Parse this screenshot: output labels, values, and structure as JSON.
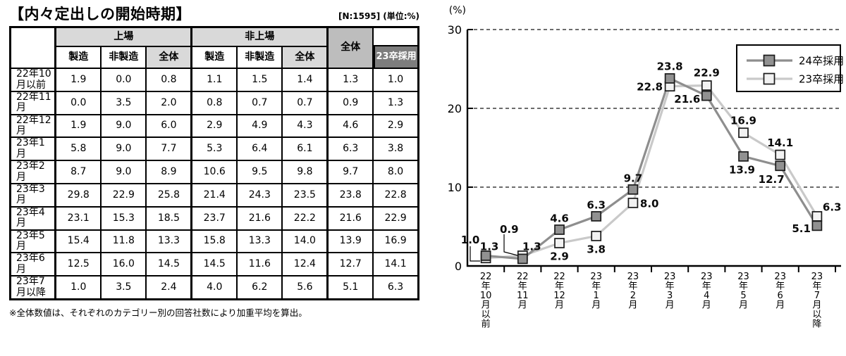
{
  "header": {
    "title": "【内々定出しの開始時期】",
    "note_n": "[N:1595]",
    "note_unit": "(単位:%)"
  },
  "table": {
    "column_groups": [
      {
        "label": "上場",
        "sub_columns": [
          "製造",
          "非製造",
          "全体"
        ]
      },
      {
        "label": "非上場",
        "sub_columns": [
          "製造",
          "非製造",
          "全体"
        ]
      }
    ],
    "overall_label": "全体",
    "grad23_label": "23卒採用",
    "rows": [
      {
        "label": "22年10月以前",
        "values": [
          1.9,
          0.0,
          0.8,
          1.1,
          1.5,
          1.4,
          1.3,
          1.0
        ]
      },
      {
        "label": "22年11月",
        "values": [
          0.0,
          3.5,
          2.0,
          0.8,
          0.7,
          0.7,
          0.9,
          1.3
        ]
      },
      {
        "label": "22年12月",
        "values": [
          1.9,
          9.0,
          6.0,
          2.9,
          4.9,
          4.3,
          4.6,
          2.9
        ]
      },
      {
        "label": "23年1月",
        "values": [
          5.8,
          9.0,
          7.7,
          5.3,
          6.4,
          6.1,
          6.3,
          3.8
        ]
      },
      {
        "label": "23年2月",
        "values": [
          8.7,
          9.0,
          8.9,
          10.6,
          9.5,
          9.8,
          9.7,
          8.0
        ]
      },
      {
        "label": "23年3月",
        "values": [
          29.8,
          22.9,
          25.8,
          21.4,
          24.3,
          23.5,
          23.8,
          22.8
        ]
      },
      {
        "label": "23年4月",
        "values": [
          23.1,
          15.3,
          18.5,
          23.7,
          21.6,
          22.2,
          21.6,
          22.9
        ]
      },
      {
        "label": "23年5月",
        "values": [
          15.4,
          11.8,
          13.3,
          15.8,
          13.3,
          14.0,
          13.9,
          16.9
        ]
      },
      {
        "label": "23年6月",
        "values": [
          12.5,
          16.0,
          14.5,
          14.5,
          11.6,
          12.4,
          12.7,
          14.1
        ]
      },
      {
        "label": "23年7月以降",
        "values": [
          1.0,
          3.5,
          2.4,
          4.0,
          6.2,
          5.6,
          5.1,
          6.3
        ]
      }
    ],
    "footnote": "※全体数値は、それぞれのカテゴリー別の回答社数により加重平均を算出。"
  },
  "chart_data": {
    "type": "line",
    "title": "",
    "ylabel": "(%)",
    "ylim": [
      0,
      30
    ],
    "yticks": [
      0,
      10,
      20,
      30
    ],
    "grid": "horizontal dashed lines at 10, 20, 30",
    "legend_position": "top-right",
    "categories": [
      "22年10月以前",
      "22年11月",
      "22年12月",
      "23年1月",
      "23年2月",
      "23年3月",
      "23年4月",
      "23年5月",
      "23年6月",
      "23年7月以降"
    ],
    "series": [
      {
        "name": "24卒採用",
        "values": [
          1.3,
          0.9,
          4.6,
          6.3,
          9.7,
          23.8,
          21.6,
          13.9,
          12.7,
          5.1
        ],
        "line_color": "#8e8e8e",
        "marker_fill": "#919191",
        "marker_stroke": "#1a1a1a"
      },
      {
        "name": "23卒採用",
        "values": [
          1.0,
          1.3,
          2.9,
          3.8,
          8.0,
          22.8,
          22.9,
          16.9,
          14.1,
          6.3
        ],
        "line_color": "#c9c9c9",
        "marker_fill": "#f2f2f2",
        "marker_stroke": "#1a1a1a"
      }
    ]
  }
}
